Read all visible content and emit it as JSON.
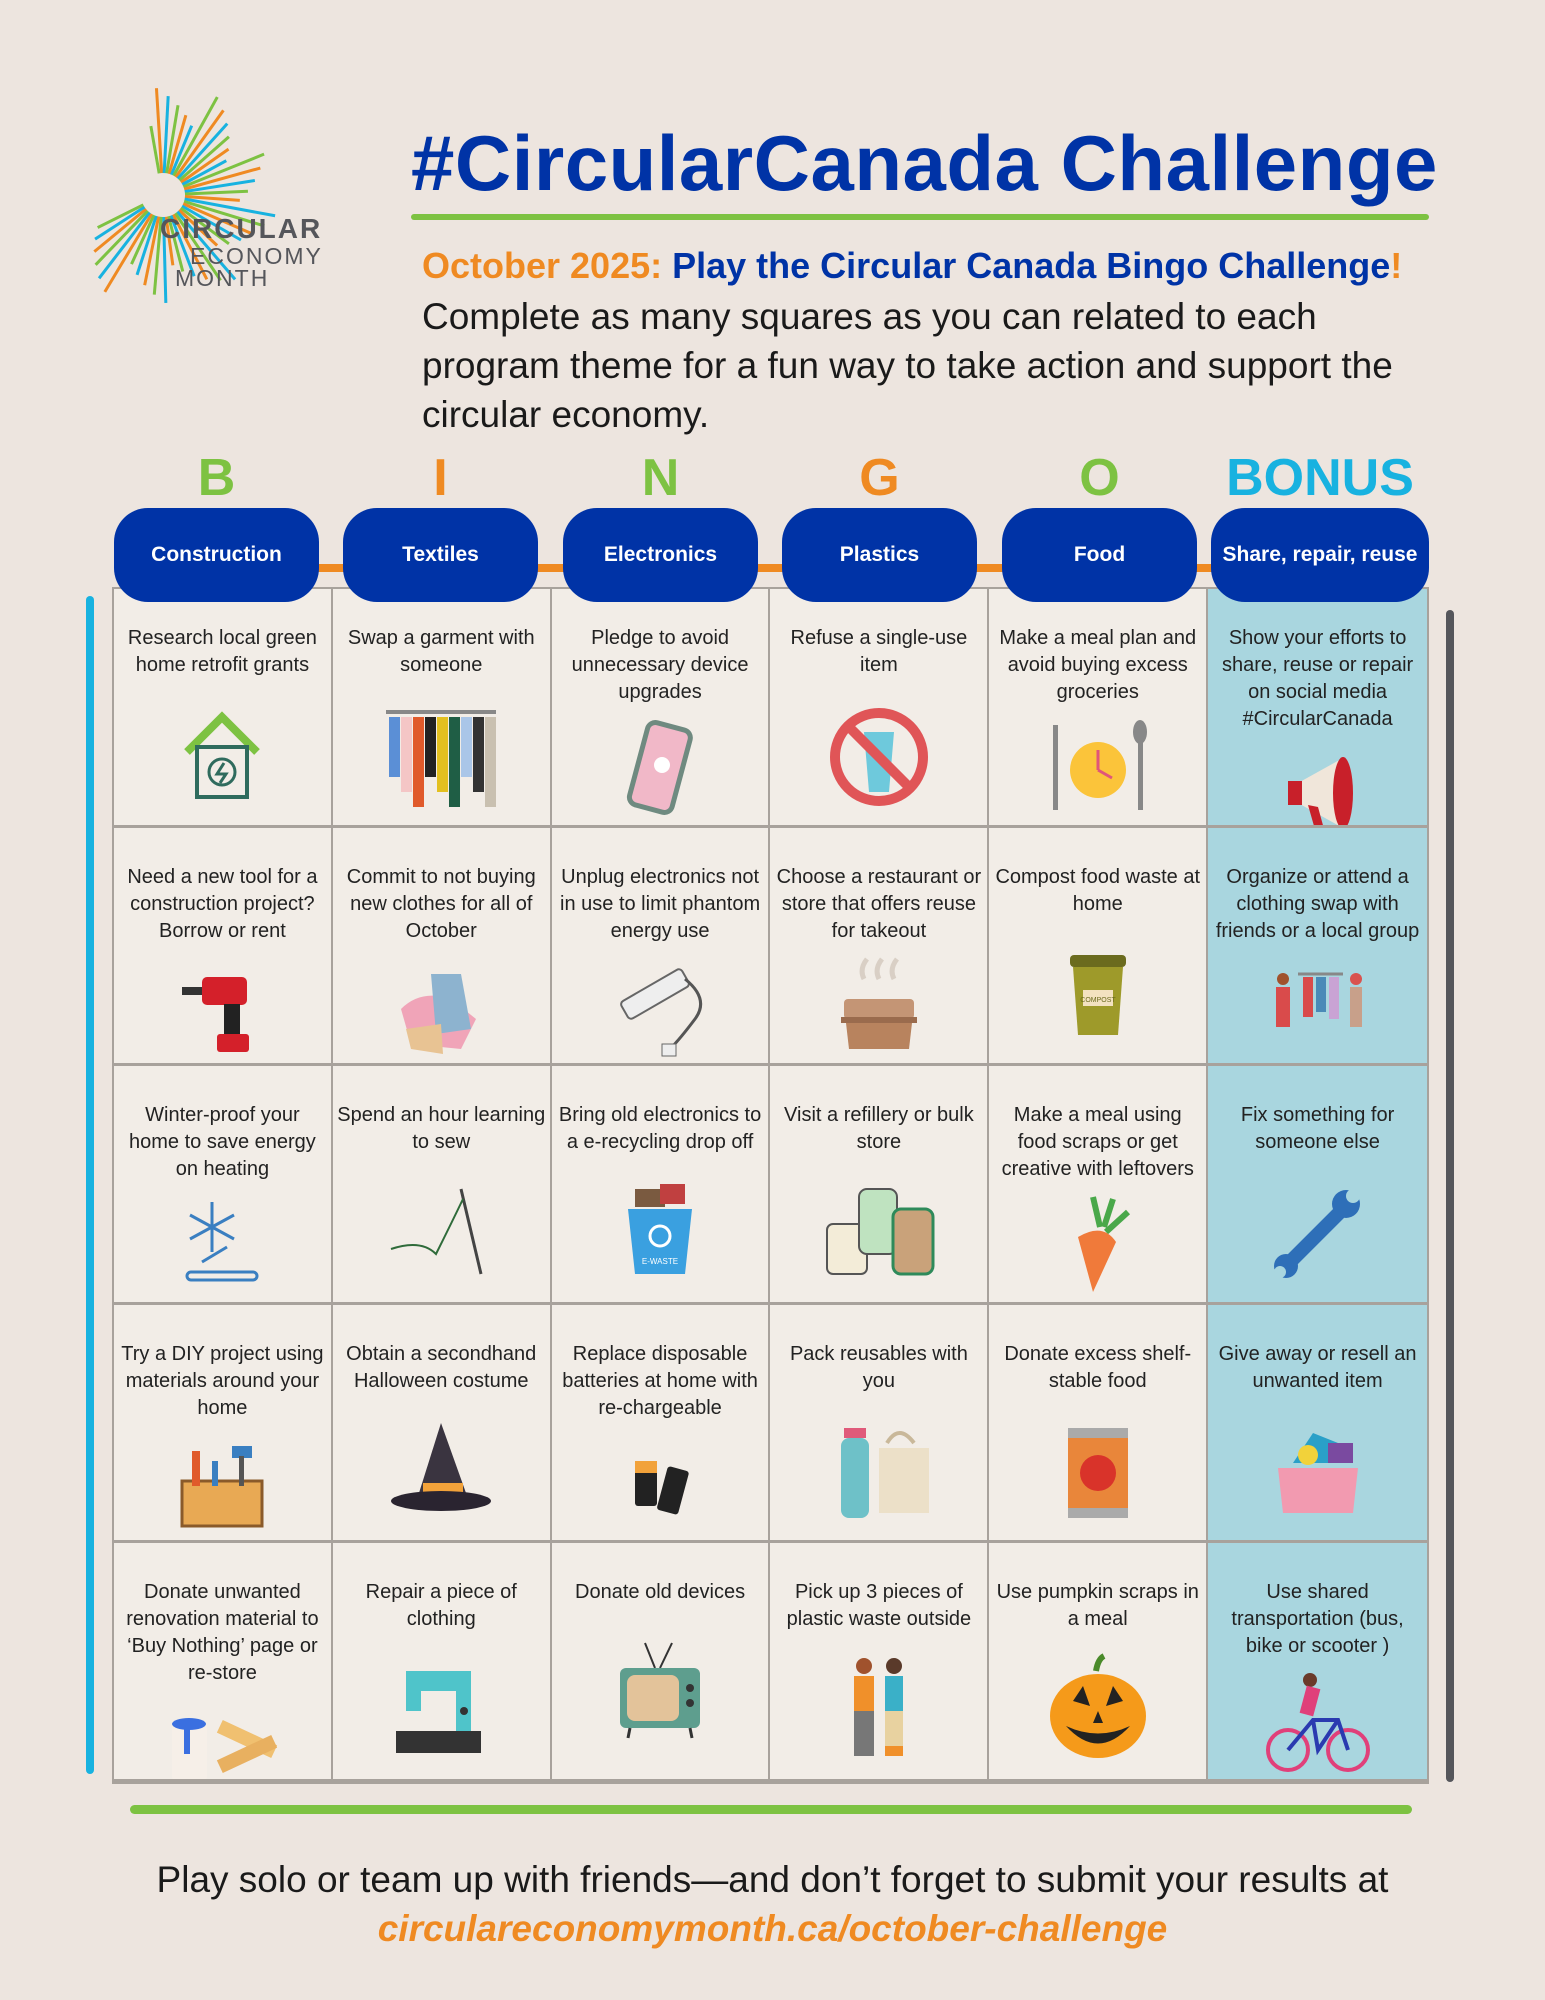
{
  "logo": {
    "line1": "CIRCULAR",
    "line2": "ECONOMY",
    "line3": "MONTH"
  },
  "title": "#CircularCanada Challenge",
  "subtitle": {
    "date": "October 2025:",
    "headline": " Play the Circular Canada Bingo Challenge",
    "bang": "!"
  },
  "intro": "Complete as many squares as you can related to each program theme for a fun way to take action and support the circular economy.",
  "colors": {
    "blue": "#0033a6",
    "orange": "#ef8a22",
    "green": "#7dc242",
    "cyan": "#18b2e0",
    "bonus_bg": "#a9d6df"
  },
  "columns": [
    {
      "letter": "B",
      "letter_color": "#7dc242",
      "theme": "Construction"
    },
    {
      "letter": "I",
      "letter_color": "#ef8a22",
      "theme": "Textiles"
    },
    {
      "letter": "N",
      "letter_color": "#7dc242",
      "theme": "Electronics"
    },
    {
      "letter": "G",
      "letter_color": "#ef8a22",
      "theme": "Plastics"
    },
    {
      "letter": "O",
      "letter_color": "#7dc242",
      "theme": "Food"
    },
    {
      "letter": "BONUS",
      "letter_color": "#18b2e0",
      "theme": "Share, repair, reuse"
    }
  ],
  "rows": [
    [
      {
        "text": "Research local green home retrofit grants",
        "icon": "green-home-icon"
      },
      {
        "text": "Swap a garment with someone",
        "icon": "clothing-rack-icon"
      },
      {
        "text": "Pledge to avoid unnecessary device upgrades",
        "icon": "smartphone-icon"
      },
      {
        "text": "Refuse a single-use item",
        "icon": "no-plastic-cup-icon"
      },
      {
        "text": "Make a meal plan and avoid buying excess groceries",
        "icon": "meal-clock-icon"
      },
      {
        "text": "Show your efforts to share, reuse or repair on social media #CircularCanada",
        "icon": "megaphone-icon"
      }
    ],
    [
      {
        "text": "Need a new tool for a construction project? Borrow or rent",
        "icon": "drill-icon"
      },
      {
        "text": "Commit to not buying new clothes for all of October",
        "icon": "clothes-pile-icon"
      },
      {
        "text": "Unplug electronics not in use to limit phantom energy use",
        "icon": "power-strip-icon"
      },
      {
        "text": "Choose a restaurant or store that offers reuse for takeout",
        "icon": "takeout-container-icon"
      },
      {
        "text": "Compost food waste at home",
        "icon": "compost-bin-icon"
      },
      {
        "text": "Organize or attend a clothing swap with friends or a local group",
        "icon": "clothing-swap-icon"
      }
    ],
    [
      {
        "text": "Winter-proof your home to save energy on heating",
        "icon": "snowflake-icon"
      },
      {
        "text": "Spend an hour learning to sew",
        "icon": "needle-thread-icon"
      },
      {
        "text": "Bring old electronics to a e-recycling drop off",
        "icon": "e-waste-bin-icon"
      },
      {
        "text": "Visit a refillery or bulk store",
        "icon": "jars-icon"
      },
      {
        "text": "Make a meal using food scraps or get creative with leftovers",
        "icon": "carrot-icon"
      },
      {
        "text": "Fix something for someone else",
        "icon": "wrench-icon"
      }
    ],
    [
      {
        "text": "Try a DIY project using materials around your home",
        "icon": "toolbox-icon"
      },
      {
        "text": "Obtain a secondhand Halloween costume",
        "icon": "witch-hat-icon"
      },
      {
        "text": "Replace disposable batteries at home with re-chargeable",
        "icon": "batteries-icon"
      },
      {
        "text": "Pack reusables with you",
        "icon": "bottle-bag-icon"
      },
      {
        "text": "Donate excess shelf-stable food",
        "icon": "tin-can-icon"
      },
      {
        "text": "Give away or resell an unwanted item",
        "icon": "donation-box-icon"
      }
    ],
    [
      {
        "text": "Donate unwanted renovation material to ‘Buy Nothing’ page or  re-store",
        "icon": "paint-wood-icon"
      },
      {
        "text": "Repair a piece of clothing",
        "icon": "sewing-machine-icon"
      },
      {
        "text": "Donate old devices",
        "icon": "tv-icon"
      },
      {
        "text": "Pick up 3 pieces of plastic waste outside",
        "icon": "litter-pickers-icon"
      },
      {
        "text": "Use pumpkin scraps in a meal",
        "icon": "pumpkin-icon"
      },
      {
        "text": "Use shared transportation (bus, bike or scooter )",
        "icon": "bicycle-icon"
      }
    ]
  ],
  "footer": {
    "text": "Play solo or team up with friends—and don’t forget to submit your results at ",
    "url": "circulareconomymonth.ca/october-challenge"
  }
}
